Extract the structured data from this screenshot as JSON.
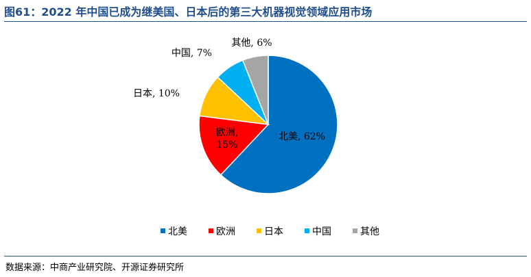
{
  "title": "图61：2022 年中国已成为继美国、日本后的第三大机器视觉领域应用市场",
  "source": "数据来源：中商产业研究院、开源证券研究所",
  "chart_data": {
    "type": "pie",
    "title": "",
    "legend_position": "bottom",
    "slices": [
      {
        "name": "北美",
        "value": 62,
        "color": "#0070c0",
        "label": "北美, 62%"
      },
      {
        "name": "欧洲",
        "value": 15,
        "color": "#ff0000",
        "label_lines": [
          "欧洲,",
          "15%"
        ]
      },
      {
        "name": "日本",
        "value": 10,
        "color": "#ffc000",
        "label": "日本, 10%"
      },
      {
        "name": "中国",
        "value": 7,
        "color": "#00b0f0",
        "label": "中国, 7%"
      },
      {
        "name": "其他",
        "value": 6,
        "color": "#a5a5a5",
        "label": "其他, 6%"
      }
    ]
  }
}
